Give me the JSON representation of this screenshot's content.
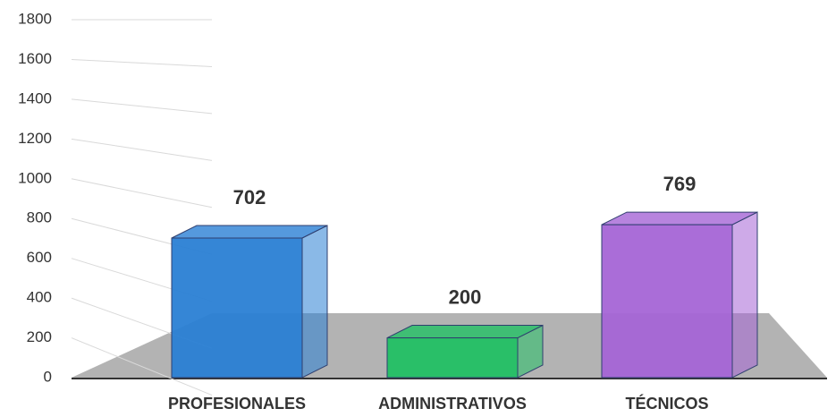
{
  "chart_data": {
    "type": "bar3d",
    "categories": [
      "PROFESIONALES",
      "ADMINISTRATIVOS",
      "TÉCNICOS"
    ],
    "values": [
      702,
      200,
      769
    ],
    "colors": [
      "#2a7fd4",
      "#22c064",
      "#a565d6"
    ],
    "ylim": [
      0,
      1800
    ],
    "yticks": [
      0,
      200,
      400,
      600,
      800,
      1000,
      1200,
      1400,
      1600,
      1800
    ],
    "grid": true
  }
}
